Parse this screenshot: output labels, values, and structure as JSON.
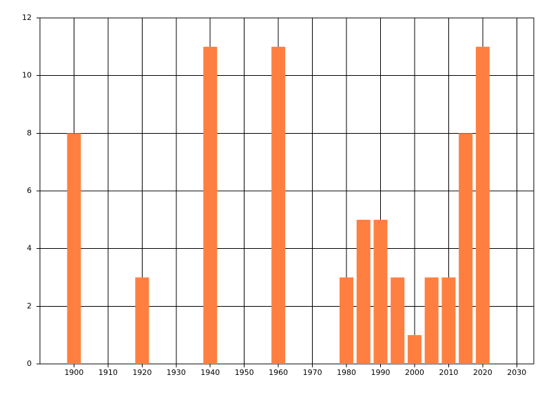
{
  "chart_data": {
    "type": "bar",
    "x": [
      1900,
      1920,
      1940,
      1960,
      1980,
      1985,
      1990,
      1995,
      2000,
      2005,
      2010,
      2015,
      2020
    ],
    "values": [
      8,
      3,
      11,
      11,
      3,
      5,
      5,
      3,
      1,
      3,
      3,
      8,
      11
    ],
    "color": "#ff7f40",
    "xlim": [
      1890,
      2035
    ],
    "xticks": [
      1900,
      1910,
      1920,
      1930,
      1940,
      1950,
      1960,
      1970,
      1980,
      1990,
      2000,
      2010,
      2020,
      2030
    ],
    "ylim": [
      0,
      12
    ],
    "yticks": [
      0,
      2,
      4,
      6,
      8,
      10,
      12
    ],
    "grid": true
  }
}
